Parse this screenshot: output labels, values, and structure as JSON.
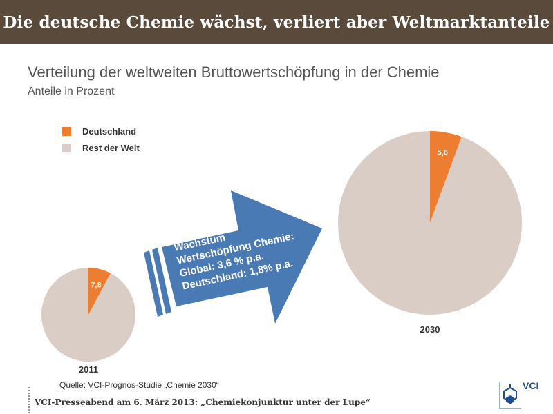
{
  "header": {
    "title": "Die deutsche Chemie wächst, verliert aber Weltmarktanteile"
  },
  "colors": {
    "banner": "#5a4a3c",
    "deutschland": "#ec7d31",
    "rest": "#d9cdc6",
    "arrow": "#4a7ab3",
    "text": "#555555"
  },
  "chart_data": {
    "type": "pie",
    "title": "Verteilung der weltweiten Bruttowertschöpfung in der Chemie",
    "subtitle": "Anteile in Prozent",
    "legend": {
      "placement": "top-left",
      "entries": [
        {
          "label": "Deutschland",
          "color": "#ec7d31"
        },
        {
          "label": "Rest der Welt",
          "color": "#d9cdc6"
        }
      ]
    },
    "pies": [
      {
        "year": "2011",
        "slices": [
          {
            "name": "Deutschland",
            "value": 7.8,
            "label": "7,8"
          },
          {
            "name": "Rest der Welt",
            "value": 92.2
          }
        ]
      },
      {
        "year": "2030",
        "slices": [
          {
            "name": "Deutschland",
            "value": 5.6,
            "label": "5,6"
          },
          {
            "name": "Rest der Welt",
            "value": 94.4
          }
        ]
      }
    ],
    "annotation": {
      "lines": [
        "Wachstum",
        "Wertschöpfung Chemie:",
        "Global: 3,6 % p.a.",
        "Deutschland: 1,8% p.a."
      ]
    }
  },
  "source": "Quelle: VCI-Prognos-Studie „Chemie 2030“",
  "footer": {
    "text": "VCI-Presseabend am 6. März 2013: „Chemiekonjunktur unter der Lupe“",
    "logo_text": "VCI"
  }
}
